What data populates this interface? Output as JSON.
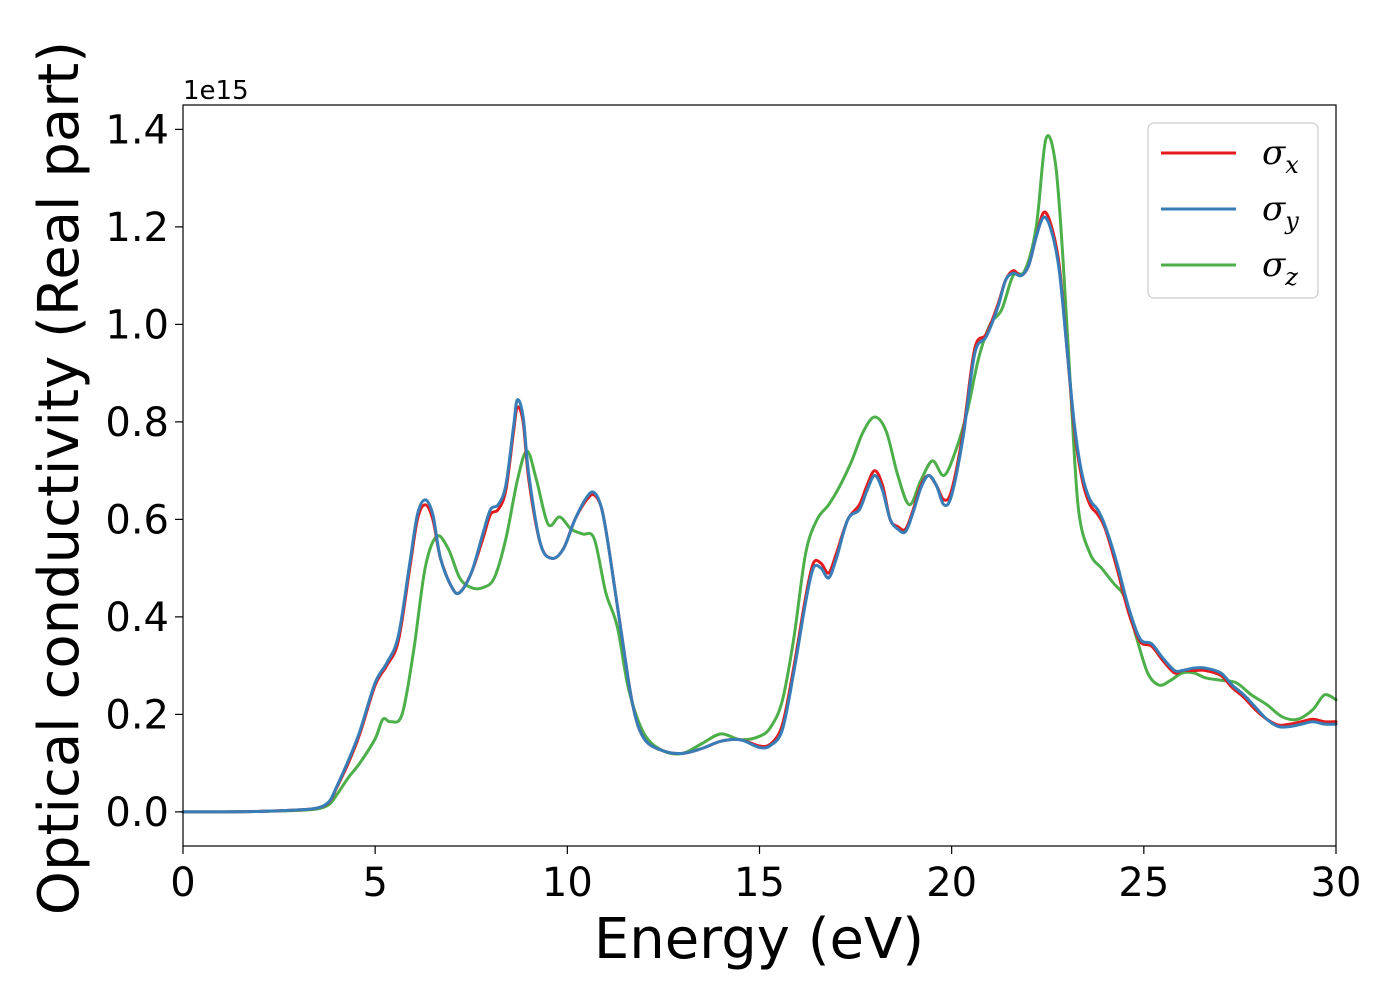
{
  "chart_data": {
    "type": "line",
    "xlabel": "Energy (eV)",
    "ylabel": "Optical conductivity (Real part)",
    "y_offset_label": "1e15",
    "y_multiplier": 1000000000000000.0,
    "xlim": [
      0,
      30
    ],
    "ylim": [
      -0.07,
      1.45
    ],
    "xticks": [
      0,
      5,
      10,
      15,
      20,
      25,
      30
    ],
    "xtick_labels": [
      "0",
      "5",
      "10",
      "15",
      "20",
      "25",
      "30"
    ],
    "yticks": [
      0.0,
      0.2,
      0.4,
      0.6,
      0.8,
      1.0,
      1.2,
      1.4
    ],
    "ytick_labels": [
      "0.0",
      "0.2",
      "0.4",
      "0.6",
      "0.8",
      "1.0",
      "1.2",
      "1.4"
    ],
    "grid": false,
    "legend_position": "top-right",
    "series": [
      {
        "name": "σx",
        "legend_main": "σ",
        "legend_sub": "x",
        "color": "#e41a1c",
        "x": [
          0,
          1,
          2,
          3,
          3.5,
          3.8,
          4.0,
          4.3,
          4.6,
          5.0,
          5.3,
          5.6,
          5.9,
          6.1,
          6.3,
          6.5,
          6.7,
          7.0,
          7.2,
          7.5,
          7.8,
          8.0,
          8.2,
          8.4,
          8.6,
          8.7,
          8.85,
          9.0,
          9.3,
          9.6,
          9.9,
          10.2,
          10.5,
          10.7,
          10.9,
          11.1,
          11.4,
          11.7,
          12.0,
          12.5,
          13.0,
          13.5,
          14.0,
          14.5,
          15.0,
          15.3,
          15.6,
          15.9,
          16.2,
          16.4,
          16.6,
          16.8,
          17.0,
          17.3,
          17.6,
          17.8,
          18.0,
          18.2,
          18.4,
          18.6,
          18.8,
          19.0,
          19.2,
          19.4,
          19.6,
          19.8,
          20.0,
          20.3,
          20.6,
          20.9,
          21.2,
          21.4,
          21.6,
          21.8,
          22.0,
          22.2,
          22.4,
          22.6,
          22.8,
          23.0,
          23.2,
          23.4,
          23.6,
          23.8,
          24.0,
          24.3,
          24.6,
          24.9,
          25.2,
          25.5,
          25.8,
          26.0,
          26.3,
          26.6,
          27.0,
          27.3,
          27.6,
          27.9,
          28.2,
          28.5,
          28.8,
          29.1,
          29.4,
          29.7,
          30.0
        ],
        "y": [
          0,
          0,
          0.001,
          0.004,
          0.008,
          0.02,
          0.05,
          0.1,
          0.16,
          0.26,
          0.3,
          0.35,
          0.5,
          0.6,
          0.63,
          0.6,
          0.52,
          0.46,
          0.45,
          0.49,
          0.56,
          0.61,
          0.62,
          0.66,
          0.78,
          0.83,
          0.8,
          0.68,
          0.55,
          0.52,
          0.54,
          0.6,
          0.64,
          0.65,
          0.62,
          0.53,
          0.37,
          0.22,
          0.15,
          0.125,
          0.12,
          0.13,
          0.145,
          0.148,
          0.135,
          0.14,
          0.18,
          0.3,
          0.44,
          0.51,
          0.51,
          0.49,
          0.53,
          0.6,
          0.63,
          0.67,
          0.7,
          0.67,
          0.6,
          0.585,
          0.58,
          0.62,
          0.67,
          0.69,
          0.67,
          0.64,
          0.66,
          0.78,
          0.95,
          0.98,
          1.04,
          1.09,
          1.11,
          1.1,
          1.12,
          1.18,
          1.23,
          1.2,
          1.12,
          0.95,
          0.78,
          0.68,
          0.63,
          0.61,
          0.58,
          0.5,
          0.41,
          0.35,
          0.34,
          0.31,
          0.285,
          0.29,
          0.29,
          0.29,
          0.28,
          0.255,
          0.235,
          0.21,
          0.19,
          0.178,
          0.18,
          0.185,
          0.19,
          0.185,
          0.185
        ]
      },
      {
        "name": "σy",
        "legend_main": "σ",
        "legend_sub": "y",
        "color": "#377eb8",
        "x": [
          0,
          1,
          2,
          3,
          3.5,
          3.8,
          4.0,
          4.3,
          4.6,
          5.0,
          5.3,
          5.6,
          5.9,
          6.1,
          6.3,
          6.5,
          6.7,
          7.0,
          7.2,
          7.5,
          7.8,
          8.0,
          8.2,
          8.4,
          8.6,
          8.7,
          8.85,
          9.0,
          9.3,
          9.6,
          9.9,
          10.2,
          10.5,
          10.7,
          10.9,
          11.1,
          11.4,
          11.7,
          12.0,
          12.5,
          13.0,
          13.5,
          14.0,
          14.5,
          15.0,
          15.3,
          15.6,
          15.9,
          16.2,
          16.4,
          16.6,
          16.8,
          17.0,
          17.3,
          17.6,
          17.8,
          18.0,
          18.2,
          18.4,
          18.6,
          18.8,
          19.0,
          19.2,
          19.4,
          19.6,
          19.8,
          20.0,
          20.3,
          20.6,
          20.9,
          21.2,
          21.4,
          21.6,
          21.8,
          22.0,
          22.2,
          22.4,
          22.6,
          22.8,
          23.0,
          23.2,
          23.4,
          23.6,
          23.8,
          24.0,
          24.3,
          24.6,
          24.9,
          25.2,
          25.5,
          25.8,
          26.0,
          26.3,
          26.6,
          27.0,
          27.3,
          27.6,
          27.9,
          28.2,
          28.5,
          28.8,
          29.1,
          29.4,
          29.7,
          30.0
        ],
        "y": [
          0,
          0,
          0.001,
          0.004,
          0.008,
          0.021,
          0.052,
          0.105,
          0.165,
          0.265,
          0.305,
          0.36,
          0.51,
          0.61,
          0.64,
          0.61,
          0.52,
          0.46,
          0.45,
          0.49,
          0.57,
          0.62,
          0.63,
          0.67,
          0.79,
          0.845,
          0.81,
          0.69,
          0.55,
          0.52,
          0.54,
          0.6,
          0.645,
          0.655,
          0.62,
          0.53,
          0.37,
          0.22,
          0.15,
          0.125,
          0.12,
          0.13,
          0.145,
          0.148,
          0.132,
          0.137,
          0.17,
          0.29,
          0.43,
          0.5,
          0.5,
          0.48,
          0.52,
          0.6,
          0.62,
          0.66,
          0.69,
          0.66,
          0.6,
          0.58,
          0.575,
          0.615,
          0.665,
          0.69,
          0.67,
          0.63,
          0.65,
          0.77,
          0.94,
          0.975,
          1.035,
          1.09,
          1.105,
          1.1,
          1.12,
          1.18,
          1.22,
          1.19,
          1.11,
          0.95,
          0.79,
          0.69,
          0.64,
          0.62,
          0.585,
          0.51,
          0.42,
          0.355,
          0.345,
          0.315,
          0.29,
          0.29,
          0.295,
          0.295,
          0.285,
          0.26,
          0.24,
          0.215,
          0.19,
          0.175,
          0.175,
          0.18,
          0.185,
          0.18,
          0.18
        ]
      },
      {
        "name": "σz",
        "legend_main": "σ",
        "legend_sub": "z",
        "color": "#4daf4a",
        "x": [
          0,
          1,
          2,
          3,
          3.5,
          3.8,
          4.0,
          4.3,
          4.6,
          5.0,
          5.2,
          5.4,
          5.7,
          6.0,
          6.3,
          6.6,
          6.9,
          7.2,
          7.5,
          7.8,
          8.1,
          8.4,
          8.7,
          8.95,
          9.2,
          9.5,
          9.8,
          10.1,
          10.4,
          10.7,
          11.0,
          11.3,
          11.6,
          12.0,
          12.5,
          13.0,
          13.5,
          14.0,
          14.5,
          15.0,
          15.3,
          15.6,
          15.9,
          16.2,
          16.5,
          16.8,
          17.1,
          17.4,
          17.7,
          18.0,
          18.3,
          18.6,
          18.9,
          19.2,
          19.5,
          19.8,
          20.1,
          20.4,
          20.7,
          21.0,
          21.3,
          21.6,
          21.9,
          22.2,
          22.45,
          22.7,
          22.9,
          23.1,
          23.3,
          23.6,
          23.9,
          24.2,
          24.5,
          24.8,
          25.1,
          25.4,
          25.7,
          26.0,
          26.3,
          26.6,
          27.0,
          27.4,
          27.8,
          28.2,
          28.6,
          29.0,
          29.4,
          29.7,
          30.0
        ],
        "y": [
          0,
          0,
          0.001,
          0.003,
          0.006,
          0.015,
          0.035,
          0.07,
          0.1,
          0.15,
          0.19,
          0.185,
          0.2,
          0.33,
          0.5,
          0.565,
          0.54,
          0.48,
          0.46,
          0.46,
          0.48,
          0.56,
          0.68,
          0.74,
          0.68,
          0.59,
          0.605,
          0.58,
          0.57,
          0.56,
          0.45,
          0.38,
          0.25,
          0.16,
          0.125,
          0.12,
          0.14,
          0.16,
          0.148,
          0.155,
          0.175,
          0.23,
          0.36,
          0.53,
          0.6,
          0.63,
          0.67,
          0.72,
          0.78,
          0.81,
          0.78,
          0.69,
          0.63,
          0.68,
          0.72,
          0.69,
          0.74,
          0.82,
          0.93,
          1.0,
          1.03,
          1.1,
          1.11,
          1.2,
          1.38,
          1.33,
          1.13,
          0.86,
          0.62,
          0.53,
          0.5,
          0.47,
          0.44,
          0.36,
          0.285,
          0.26,
          0.27,
          0.285,
          0.285,
          0.275,
          0.27,
          0.265,
          0.24,
          0.22,
          0.195,
          0.19,
          0.21,
          0.24,
          0.23
        ]
      }
    ]
  }
}
